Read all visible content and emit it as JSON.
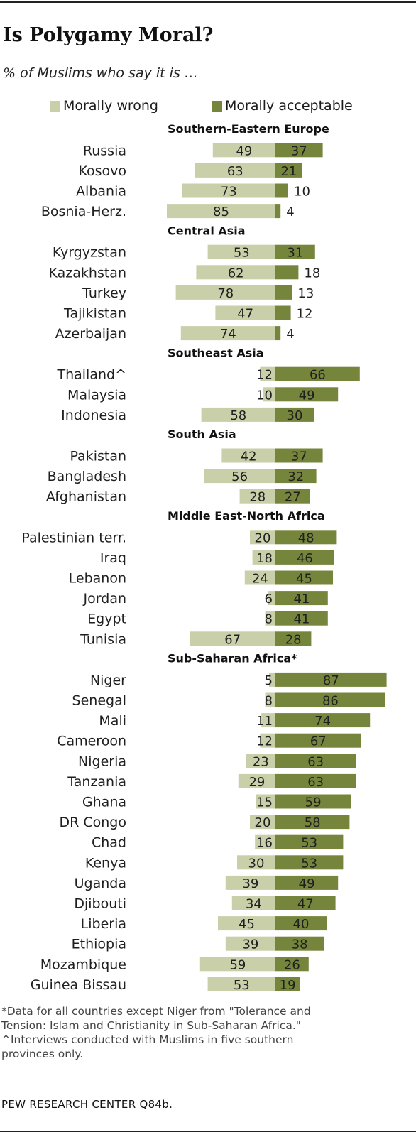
{
  "title": "Is Polygamy Moral?",
  "subtitle": "% of Muslims who say it is …",
  "colors": {
    "wrong": "#c9cfa9",
    "acceptable": "#76853c"
  },
  "footnotes": [
    "*Data for all countries except Niger from \"Tolerance and",
    "Tension: Islam and Christianity in Sub-Saharan Africa.\"",
    "^Interviews conducted with Muslims in five southern",
    "provinces only."
  ],
  "source": "PEW RESEARCH CENTER Q84b.",
  "chart_data": {
    "type": "bar",
    "orientation": "horizontal-diverging",
    "series": [
      {
        "name": "Morally wrong",
        "color": "#c9cfa9"
      },
      {
        "name": "Morally acceptable",
        "color": "#76853c"
      }
    ],
    "groups": [
      {
        "name": "Southern-Eastern  Europe",
        "rows": [
          {
            "label": "Russia",
            "wrong": 49,
            "acceptable": 37
          },
          {
            "label": "Kosovo",
            "wrong": 63,
            "acceptable": 21
          },
          {
            "label": "Albania",
            "wrong": 73,
            "acceptable": 10
          },
          {
            "label": "Bosnia-Herz.",
            "wrong": 85,
            "acceptable": 4
          }
        ]
      },
      {
        "name": "Central Asia",
        "rows": [
          {
            "label": "Kyrgyzstan",
            "wrong": 53,
            "acceptable": 31
          },
          {
            "label": "Kazakhstan",
            "wrong": 62,
            "acceptable": 18
          },
          {
            "label": "Turkey",
            "wrong": 78,
            "acceptable": 13
          },
          {
            "label": "Tajikistan",
            "wrong": 47,
            "acceptable": 12
          },
          {
            "label": "Azerbaijan",
            "wrong": 74,
            "acceptable": 4
          }
        ]
      },
      {
        "name": "Southeast Asia",
        "rows": [
          {
            "label": "Thailand^",
            "wrong": 12,
            "acceptable": 66
          },
          {
            "label": "Malaysia",
            "wrong": 10,
            "acceptable": 49
          },
          {
            "label": "Indonesia",
            "wrong": 58,
            "acceptable": 30
          }
        ]
      },
      {
        "name": "South Asia",
        "rows": [
          {
            "label": "Pakistan",
            "wrong": 42,
            "acceptable": 37
          },
          {
            "label": "Bangladesh",
            "wrong": 56,
            "acceptable": 32
          },
          {
            "label": "Afghanistan",
            "wrong": 28,
            "acceptable": 27
          }
        ]
      },
      {
        "name": "Middle East-North  Africa",
        "rows": [
          {
            "label": "Palestinian terr.",
            "wrong": 20,
            "acceptable": 48
          },
          {
            "label": "Iraq",
            "wrong": 18,
            "acceptable": 46
          },
          {
            "label": "Lebanon",
            "wrong": 24,
            "acceptable": 45
          },
          {
            "label": "Jordan",
            "wrong": 6,
            "acceptable": 41
          },
          {
            "label": "Egypt",
            "wrong": 8,
            "acceptable": 41
          },
          {
            "label": "Tunisia",
            "wrong": 67,
            "acceptable": 28
          }
        ]
      },
      {
        "name": "Sub-Saharan  Africa*",
        "rows": [
          {
            "label": "Niger",
            "wrong": 5,
            "acceptable": 87
          },
          {
            "label": "Senegal",
            "wrong": 8,
            "acceptable": 86
          },
          {
            "label": "Mali",
            "wrong": 11,
            "acceptable": 74
          },
          {
            "label": "Cameroon",
            "wrong": 12,
            "acceptable": 67
          },
          {
            "label": "Nigeria",
            "wrong": 23,
            "acceptable": 63
          },
          {
            "label": "Tanzania",
            "wrong": 29,
            "acceptable": 63
          },
          {
            "label": "Ghana",
            "wrong": 15,
            "acceptable": 59
          },
          {
            "label": "DR Congo",
            "wrong": 20,
            "acceptable": 58
          },
          {
            "label": "Chad",
            "wrong": 16,
            "acceptable": 53
          },
          {
            "label": "Kenya",
            "wrong": 30,
            "acceptable": 53
          },
          {
            "label": "Uganda",
            "wrong": 39,
            "acceptable": 49
          },
          {
            "label": "Djibouti",
            "wrong": 34,
            "acceptable": 47
          },
          {
            "label": "Liberia",
            "wrong": 45,
            "acceptable": 40
          },
          {
            "label": "Ethiopia",
            "wrong": 39,
            "acceptable": 38
          },
          {
            "label": "Mozambique",
            "wrong": 59,
            "acceptable": 26
          },
          {
            "label": "Guinea Bissau",
            "wrong": 53,
            "acceptable": 19
          }
        ]
      }
    ]
  }
}
